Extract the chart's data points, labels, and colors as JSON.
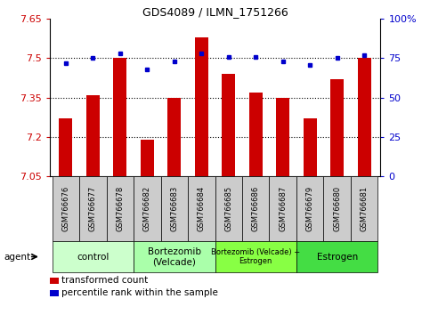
{
  "title": "GDS4089 / ILMN_1751266",
  "samples": [
    "GSM766676",
    "GSM766677",
    "GSM766678",
    "GSM766682",
    "GSM766683",
    "GSM766684",
    "GSM766685",
    "GSM766686",
    "GSM766687",
    "GSM766679",
    "GSM766680",
    "GSM766681"
  ],
  "bar_values": [
    7.27,
    7.36,
    7.5,
    7.19,
    7.35,
    7.58,
    7.44,
    7.37,
    7.35,
    7.27,
    7.42,
    7.5
  ],
  "dot_values": [
    72,
    75,
    78,
    68,
    73,
    78,
    76,
    76,
    73,
    71,
    75,
    77
  ],
  "bar_color": "#cc0000",
  "dot_color": "#0000cc",
  "ylim_left": [
    7.05,
    7.65
  ],
  "ylim_right": [
    0,
    100
  ],
  "yticks_left": [
    7.05,
    7.2,
    7.35,
    7.5,
    7.65
  ],
  "ytick_labels_left": [
    "7.05",
    "7.2",
    "7.35",
    "7.5",
    "7.65"
  ],
  "yticks_right": [
    0,
    25,
    50,
    75,
    100
  ],
  "ytick_labels_right": [
    "0",
    "25",
    "50",
    "75",
    "100%"
  ],
  "hlines": [
    7.2,
    7.35,
    7.5
  ],
  "groups": [
    {
      "label": "control",
      "start": 0,
      "end": 3,
      "color": "#ccffcc"
    },
    {
      "label": "Bortezomib\n(Velcade)",
      "start": 3,
      "end": 6,
      "color": "#aaffaa"
    },
    {
      "label": "Bortezomib (Velcade) +\nEstrogen",
      "start": 6,
      "end": 9,
      "color": "#88ff44"
    },
    {
      "label": "Estrogen",
      "start": 9,
      "end": 12,
      "color": "#44dd44"
    }
  ],
  "agent_label": "agent",
  "legend_bar_label": "transformed count",
  "legend_dot_label": "percentile rank within the sample",
  "bar_color_red": "#cc0000",
  "dot_color_blue": "#0000cc",
  "background_color": "#ffffff",
  "plot_bg_color": "#ffffff",
  "base_value": 7.05,
  "tick_box_color": "#cccccc",
  "tick_box_edge": "#000000"
}
